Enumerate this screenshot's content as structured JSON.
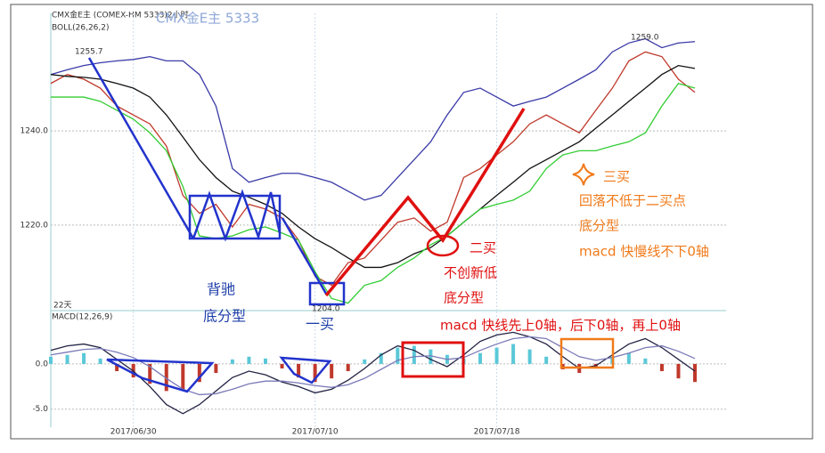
{
  "chart_data": [
    {
      "type": "line",
      "subtitle": "CMX金E主 (COMEX-HM 5333)2小时",
      "title": "CMX金E主  5333",
      "indicator": "BOLL(26,26,2)",
      "ylim": [
        1202,
        1265
      ],
      "yticks": [
        {
          "value": 1240,
          "label": "1240.0"
        },
        {
          "value": 1220,
          "label": "1220.0"
        }
      ],
      "grid": true,
      "series": [
        {
          "color": "#c0392b",
          "values": [
            1250.1,
            1252,
            1251,
            1249.1,
            1245.3,
            1243.4,
            1241.5,
            1236.8,
            1226.3,
            1222.5,
            1224.4,
            1219.6,
            1224.4,
            1223.4,
            1221.5,
            1216.8,
            1209.1,
            1207.2,
            1212,
            1213,
            1216.8,
            1220.6,
            1221.5,
            1218.7,
            1220.6,
            1230.1,
            1232,
            1234.9,
            1237.7,
            1241.5,
            1243.4,
            1241.5,
            1239.6,
            1244.4,
            1249.1,
            1254.9,
            1256.8,
            1255.8,
            1251,
            1248.2
          ]
        },
        {
          "color": "#3a3aa8",
          "values": [
            1252,
            1253,
            1253.9,
            1254.5,
            1254.9,
            1255.2,
            1255.8,
            1254.9,
            1254.9,
            1252,
            1245.3,
            1232,
            1229.1,
            1230.1,
            1231,
            1231,
            1230.1,
            1229.1,
            1227.2,
            1225.3,
            1226.3,
            1230.1,
            1233.9,
            1237.7,
            1243.4,
            1248.2,
            1249.1,
            1247.2,
            1245.3,
            1246.3,
            1247.2,
            1249.1,
            1251,
            1253,
            1256.8,
            1258.7,
            1259.6,
            1257.7,
            1258.7,
            1259
          ]
        },
        {
          "color": "#111111",
          "values": [
            1252,
            1251.6,
            1251.4,
            1251,
            1250.1,
            1249.1,
            1247.2,
            1243.4,
            1238.7,
            1233.9,
            1230.1,
            1227.2,
            1225.9,
            1224.4,
            1222.5,
            1219.6,
            1217.1,
            1215.2,
            1213,
            1211,
            1211,
            1212,
            1213.9,
            1215.2,
            1217.7,
            1220.6,
            1223.4,
            1226.3,
            1229.1,
            1232,
            1233.9,
            1235.8,
            1237.7,
            1240.6,
            1243.4,
            1246.3,
            1249.1,
            1252,
            1253.9,
            1253.3
          ]
        },
        {
          "color": "#33cc33",
          "values": [
            1247.2,
            1247.2,
            1247.2,
            1246.3,
            1244.4,
            1242.5,
            1239.6,
            1235.8,
            1228.2,
            1217.7,
            1217.1,
            1217.7,
            1219,
            1219.6,
            1218.3,
            1216.8,
            1210.1,
            1204.4,
            1203.4,
            1207.2,
            1208.2,
            1211,
            1213,
            1215.8,
            1217.7,
            1220.6,
            1223.4,
            1224.4,
            1225.3,
            1227.2,
            1232,
            1234.9,
            1235.8,
            1235.8,
            1236.8,
            1237.7,
            1239.6,
            1245.3,
            1250.1,
            1249.1
          ]
        }
      ],
      "annotations": [
        "1255.7",
        "1204.0",
        "1259.0",
        "22天",
        "背驰",
        "底分型",
        "一买",
        "二买",
        "不创新低",
        "底分型",
        "macd 快线先上0轴，后下0轴，再上0轴",
        "三买",
        "回落不低于二买点",
        "底分型",
        "macd 快慢线不下0轴"
      ]
    },
    {
      "type": "macd",
      "title": "MACD(12,26,9)",
      "ylim": [
        -7,
        5.8
      ],
      "yticks": [
        {
          "value": 0,
          "label": "0.0"
        },
        {
          "value": -5,
          "label": "-5.0"
        }
      ],
      "grid": true,
      "categories": [
        null,
        null,
        null,
        null,
        null,
        "2017/06/30",
        null,
        null,
        null,
        null,
        null,
        null,
        null,
        null,
        null,
        null,
        "2017/07/10",
        null,
        null,
        null,
        null,
        null,
        null,
        null,
        null,
        null,
        null,
        "2017/07/18",
        null,
        null,
        null,
        null,
        null,
        null,
        null,
        null,
        null,
        null,
        null,
        null
      ],
      "series": [
        {
          "style": "bars",
          "color": "#5bc8d8",
          "negative_color": "#c0392b",
          "values": [
            0.8,
            1.0,
            1.2,
            0.6,
            -0.8,
            -1.5,
            -2.2,
            -3.0,
            -2.8,
            -2.0,
            -1.0,
            0.5,
            0.8,
            0.6,
            -0.5,
            -1.5,
            -2.0,
            -1.6,
            -0.8,
            0.5,
            1.2,
            1.8,
            2.0,
            1.6,
            1.0,
            0.6,
            1.2,
            1.8,
            2.2,
            1.6,
            0.8,
            -0.6,
            -1.0,
            -0.5,
            0.8,
            1.2,
            0.6,
            -0.8,
            -1.6,
            -2.0
          ]
        },
        {
          "style": "line",
          "color": "#222244",
          "values": [
            1.5,
            2.0,
            2.2,
            1.8,
            0.5,
            -0.8,
            -2.5,
            -4.5,
            -5.5,
            -4.5,
            -3.0,
            -1.5,
            -0.8,
            -1.2,
            -2.0,
            -2.5,
            -3.2,
            -2.8,
            -1.8,
            -0.5,
            1.0,
            2.0,
            1.5,
            0.5,
            -0.3,
            1.0,
            2.5,
            3.2,
            3.5,
            3.0,
            2.2,
            0.8,
            -0.5,
            -0.2,
            1.0,
            2.2,
            2.8,
            1.8,
            0.5,
            -0.8
          ]
        },
        {
          "style": "line",
          "color": "#7a7ab8",
          "values": [
            1.0,
            1.3,
            1.6,
            1.7,
            1.3,
            0.7,
            -0.3,
            -1.6,
            -2.8,
            -3.4,
            -3.3,
            -2.8,
            -2.2,
            -1.9,
            -1.9,
            -2.1,
            -2.4,
            -2.6,
            -2.3,
            -1.6,
            -0.6,
            0.4,
            0.8,
            0.9,
            0.5,
            0.7,
            1.5,
            2.2,
            2.8,
            3.0,
            2.8,
            1.8,
            0.8,
            0.4,
            0.7,
            1.2,
            1.8,
            2.0,
            1.4,
            0.6
          ]
        }
      ]
    }
  ]
}
